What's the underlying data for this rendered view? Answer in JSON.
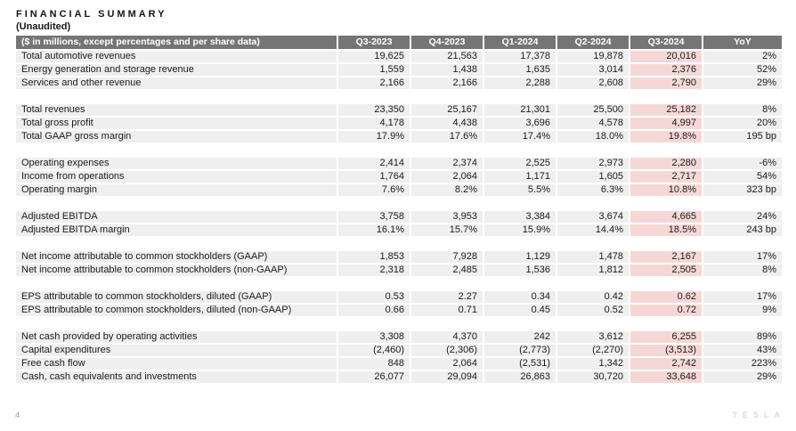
{
  "page": {
    "title": "FINANCIAL SUMMARY",
    "subtitle": "(Unaudited)",
    "page_number": "4",
    "brand": "TESLA"
  },
  "colors": {
    "header_bg": "#757575",
    "row_bg": "#efefef",
    "highlight_bg": "#f5d8d6"
  },
  "table": {
    "header": {
      "label": "($ in millions, except percentages and per share data)",
      "columns": [
        "Q3-2023",
        "Q4-2023",
        "Q1-2024",
        "Q2-2024",
        "Q3-2024",
        "YoY"
      ]
    },
    "highlight_column": "Q3-2024",
    "sections": [
      {
        "rows": [
          {
            "label": "Total automotive revenues",
            "values": [
              "19,625",
              "21,563",
              "17,378",
              "19,878",
              "20,016",
              "2%"
            ]
          },
          {
            "label": "Energy generation and storage revenue",
            "values": [
              "1,559",
              "1,438",
              "1,635",
              "3,014",
              "2,376",
              "52%"
            ]
          },
          {
            "label": "Services and other revenue",
            "values": [
              "2,166",
              "2,166",
              "2,288",
              "2,608",
              "2,790",
              "29%"
            ]
          }
        ]
      },
      {
        "rows": [
          {
            "label": "Total revenues",
            "values": [
              "23,350",
              "25,167",
              "21,301",
              "25,500",
              "25,182",
              "8%"
            ]
          },
          {
            "label": "Total gross profit",
            "values": [
              "4,178",
              "4,438",
              "3,696",
              "4,578",
              "4,997",
              "20%"
            ]
          },
          {
            "label": "Total GAAP gross margin",
            "values": [
              "17.9%",
              "17.6%",
              "17.4%",
              "18.0%",
              "19.8%",
              "195 bp"
            ]
          }
        ]
      },
      {
        "rows": [
          {
            "label": "Operating expenses",
            "values": [
              "2,414",
              "2,374",
              "2,525",
              "2,973",
              "2,280",
              "-6%"
            ]
          },
          {
            "label": "Income from operations",
            "values": [
              "1,764",
              "2,064",
              "1,171",
              "1,605",
              "2,717",
              "54%"
            ]
          },
          {
            "label": "Operating margin",
            "values": [
              "7.6%",
              "8.2%",
              "5.5%",
              "6.3%",
              "10.8%",
              "323 bp"
            ]
          }
        ]
      },
      {
        "rows": [
          {
            "label": "Adjusted EBITDA",
            "values": [
              "3,758",
              "3,953",
              "3,384",
              "3,674",
              "4,665",
              "24%"
            ]
          },
          {
            "label": "Adjusted EBITDA margin",
            "values": [
              "16.1%",
              "15.7%",
              "15.9%",
              "14.4%",
              "18.5%",
              "243 bp"
            ]
          }
        ]
      },
      {
        "rows": [
          {
            "label": "Net income attributable to common stockholders (GAAP)",
            "values": [
              "1,853",
              "7,928",
              "1,129",
              "1,478",
              "2,167",
              "17%"
            ]
          },
          {
            "label": "Net income attributable to common stockholders (non-GAAP)",
            "values": [
              "2,318",
              "2,485",
              "1,536",
              "1,812",
              "2,505",
              "8%"
            ]
          }
        ]
      },
      {
        "rows": [
          {
            "label": "EPS attributable to common stockholders, diluted (GAAP)",
            "values": [
              "0.53",
              "2.27",
              "0.34",
              "0.42",
              "0.62",
              "17%"
            ]
          },
          {
            "label": "EPS attributable to common stockholders, diluted (non-GAAP)",
            "values": [
              "0.66",
              "0.71",
              "0.45",
              "0.52",
              "0.72",
              "9%"
            ]
          }
        ]
      },
      {
        "rows": [
          {
            "label": "Net cash provided by operating activities",
            "values": [
              "3,308",
              "4,370",
              "242",
              "3,612",
              "6,255",
              "89%"
            ]
          },
          {
            "label": "Capital expenditures",
            "values": [
              "(2,460)",
              "(2,306)",
              "(2,773)",
              "(2,270)",
              "(3,513)",
              "43%"
            ]
          },
          {
            "label": "Free cash flow",
            "values": [
              "848",
              "2,064",
              "(2,531)",
              "1,342",
              "2,742",
              "223%"
            ]
          },
          {
            "label": "Cash, cash equivalents and investments",
            "values": [
              "26,077",
              "29,094",
              "26,863",
              "30,720",
              "33,648",
              "29%"
            ]
          }
        ]
      }
    ]
  }
}
